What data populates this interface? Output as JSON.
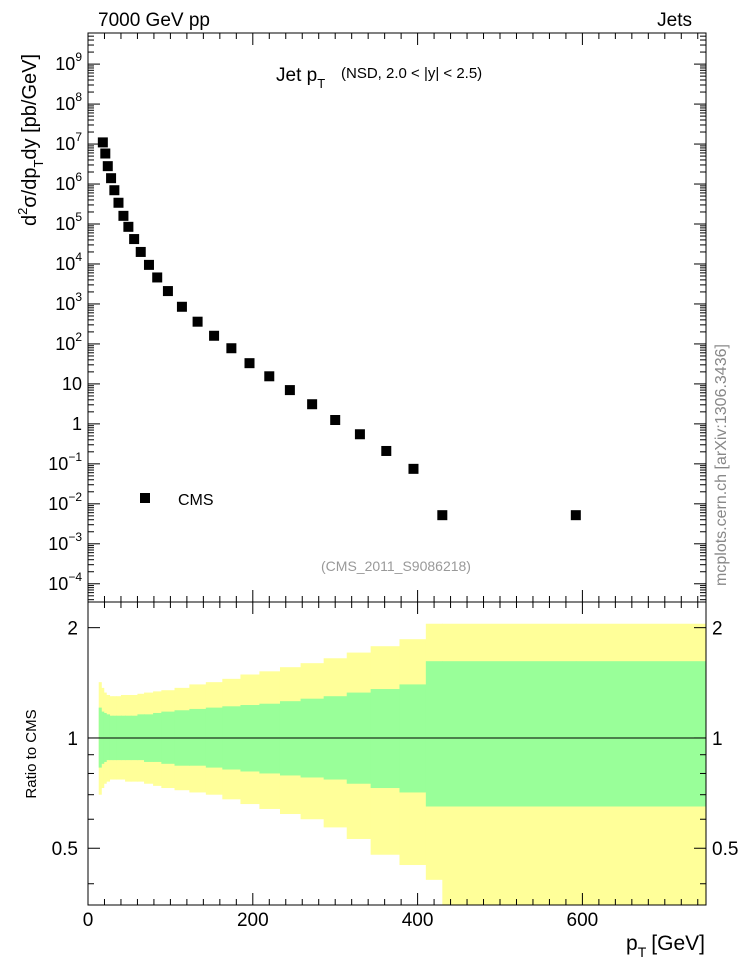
{
  "header": {
    "left_label": "7000 GeV pp",
    "right_label": "Jets"
  },
  "side_label": "mcplots.cern.ch [arXiv:1306.3436]",
  "chart_data": [
    {
      "type": "scatter",
      "title_main": "Jet p",
      "title_main_sub": "T",
      "title_detail": "(NSD, 2.0 < |y| < 2.5)",
      "analysis_id": "(CMS_2011_S9086218)",
      "ylabel_prefix": "d",
      "ylabel_sup": "2",
      "ylabel_mid": "σ/dp",
      "ylabel_sub": "T",
      "ylabel_suffix": "dy [pb/GeV]",
      "yscale": "log",
      "ylim": [
        3.5e-05,
        6000000000.0
      ],
      "xlim": [
        0,
        750
      ],
      "legend_position": "bottom-left",
      "y_tick_labels": [
        {
          "v": 1000000000.0,
          "base": "10",
          "exp": "9"
        },
        {
          "v": 100000000.0,
          "base": "10",
          "exp": "8"
        },
        {
          "v": 10000000.0,
          "base": "10",
          "exp": "7"
        },
        {
          "v": 1000000.0,
          "base": "10",
          "exp": "6"
        },
        {
          "v": 100000.0,
          "base": "10",
          "exp": "5"
        },
        {
          "v": 10000.0,
          "base": "10",
          "exp": "4"
        },
        {
          "v": 1000.0,
          "base": "10",
          "exp": "3"
        },
        {
          "v": 100.0,
          "base": "10",
          "exp": "2"
        },
        {
          "v": 10,
          "base": "10",
          "exp": ""
        },
        {
          "v": 1,
          "base": "1",
          "exp": ""
        },
        {
          "v": 0.1,
          "base": "10",
          "exp": "−1"
        },
        {
          "v": 0.01,
          "base": "10",
          "exp": "−2"
        },
        {
          "v": 0.001,
          "base": "10",
          "exp": "−3"
        },
        {
          "v": 0.0001,
          "base": "10",
          "exp": "−4"
        }
      ],
      "series": [
        {
          "name": "CMS",
          "color": "#000000",
          "x": [
            18,
            21,
            24,
            28,
            32,
            37,
            43,
            49,
            56,
            64,
            74,
            84,
            97,
            114,
            133,
            153,
            174,
            196,
            220,
            245,
            272,
            300,
            330,
            362,
            395,
            430,
            592
          ],
          "y": [
            11000000.0,
            5800000.0,
            2800000.0,
            1400000.0,
            700000.0,
            340000.0,
            160000.0,
            85000.0,
            42000.0,
            20000.0,
            9500.0,
            4600.0,
            2100.0,
            850.0,
            360.0,
            160.0,
            78,
            33,
            15.5,
            7.0,
            3.1,
            1.25,
            0.55,
            0.21,
            0.075,
            0.0052,
            0.0052
          ]
        }
      ]
    },
    {
      "type": "area",
      "ylabel": "Ratio to CMS",
      "xlabel_main": "p",
      "xlabel_sub": "T",
      "xlabel_unit": "[GeV]",
      "yscale": "log",
      "ylim": [
        0.35,
        2.35
      ],
      "xlim": [
        0,
        750
      ],
      "y_ticks": [
        0.5,
        1,
        2
      ],
      "y_tick_labels": [
        "0.5",
        "1",
        "2"
      ],
      "x_ticks": [
        0,
        200,
        400,
        600
      ],
      "x_tick_labels": [
        "0",
        "200",
        "400",
        "600"
      ],
      "reference_line": 1,
      "band_edges": [
        13,
        16,
        19,
        22,
        26,
        30,
        34,
        40,
        45,
        52,
        60,
        68,
        79,
        89,
        105,
        123,
        143,
        163,
        185,
        208,
        233,
        258,
        286,
        314,
        343,
        378,
        410,
        430,
        592,
        750
      ],
      "yellow_band": {
        "color": "#ffff99",
        "upper": [
          1.42,
          1.37,
          1.33,
          1.31,
          1.3,
          1.3,
          1.3,
          1.31,
          1.31,
          1.31,
          1.32,
          1.33,
          1.34,
          1.35,
          1.37,
          1.4,
          1.42,
          1.45,
          1.49,
          1.52,
          1.56,
          1.6,
          1.65,
          1.71,
          1.78,
          1.86,
          2.05,
          2.05,
          2.05
        ],
        "lower": [
          0.7,
          0.73,
          0.75,
          0.76,
          0.77,
          0.77,
          0.77,
          0.77,
          0.76,
          0.76,
          0.76,
          0.75,
          0.74,
          0.73,
          0.72,
          0.71,
          0.7,
          0.68,
          0.66,
          0.64,
          0.62,
          0.6,
          0.57,
          0.53,
          0.48,
          0.45,
          0.41,
          0.34,
          0.34
        ]
      },
      "green_band": {
        "color": "#99ff99",
        "upper": [
          1.21,
          1.18,
          1.17,
          1.16,
          1.15,
          1.15,
          1.15,
          1.15,
          1.15,
          1.15,
          1.16,
          1.16,
          1.17,
          1.18,
          1.19,
          1.2,
          1.21,
          1.22,
          1.23,
          1.24,
          1.26,
          1.28,
          1.3,
          1.33,
          1.36,
          1.4,
          1.62,
          1.62,
          1.62
        ],
        "lower": [
          0.83,
          0.85,
          0.86,
          0.87,
          0.87,
          0.87,
          0.87,
          0.87,
          0.87,
          0.87,
          0.87,
          0.86,
          0.86,
          0.85,
          0.84,
          0.84,
          0.83,
          0.82,
          0.81,
          0.8,
          0.79,
          0.78,
          0.77,
          0.75,
          0.73,
          0.71,
          0.65,
          0.65,
          0.65
        ]
      }
    }
  ]
}
